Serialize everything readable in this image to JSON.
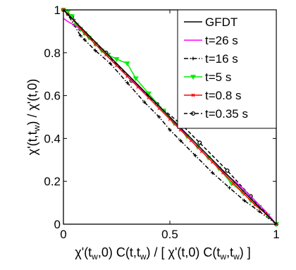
{
  "chart_data": {
    "type": "line",
    "title": "",
    "xlabel": {
      "parts": [
        {
          "t": "χ'(t"
        },
        {
          "t": "w",
          "sub": true
        },
        {
          "t": ",0) C(t,t"
        },
        {
          "t": "w",
          "sub": true
        },
        {
          "t": ") / [ χ'(t,0)  C(t"
        },
        {
          "t": "w",
          "sub": true
        },
        {
          "t": ",t"
        },
        {
          "t": "w",
          "sub": true
        },
        {
          "t": ") ]"
        }
      ]
    },
    "ylabel": {
      "parts": [
        {
          "t": "χ'(t,t"
        },
        {
          "t": "w",
          "sub": true
        },
        {
          "t": ") / χ'(t,0)"
        }
      ]
    },
    "xlim": [
      0,
      1
    ],
    "ylim": [
      0,
      1
    ],
    "xticks": [
      {
        "v": 0,
        "label": "0"
      },
      {
        "v": 0.5,
        "label": "0.5"
      },
      {
        "v": 1,
        "label": "1"
      }
    ],
    "yticks": [
      {
        "v": 0,
        "label": "0"
      },
      {
        "v": 0.2,
        "label": "0.2"
      },
      {
        "v": 0.4,
        "label": "0.4"
      },
      {
        "v": 0.6,
        "label": "0.6"
      },
      {
        "v": 0.8,
        "label": "0.8"
      },
      {
        "v": 1,
        "label": "1"
      }
    ],
    "grid": false,
    "legend_position": "top-right",
    "series": [
      {
        "name": "GFDT",
        "color": "#000000",
        "dash": "solid",
        "marker": "none",
        "points": [
          [
            0,
            1
          ],
          [
            1,
            0
          ]
        ]
      },
      {
        "name": "t=26 s",
        "color": "#ff00ff",
        "dash": "solid",
        "marker": "none",
        "points": [
          [
            0,
            0.96
          ],
          [
            0.03,
            0.94
          ],
          [
            0.05,
            0.93
          ],
          [
            0.08,
            0.91
          ],
          [
            0.12,
            0.87
          ],
          [
            0.2,
            0.79
          ],
          [
            0.3,
            0.69
          ],
          [
            0.4,
            0.6
          ],
          [
            0.5,
            0.5
          ],
          [
            0.6,
            0.39
          ],
          [
            0.7,
            0.29
          ],
          [
            0.78,
            0.22
          ],
          [
            0.84,
            0.17
          ],
          [
            0.9,
            0.11
          ],
          [
            0.95,
            0.06
          ],
          [
            1,
            0
          ]
        ]
      },
      {
        "name": "t=16 s",
        "color": "#000000",
        "dash": "dashdot",
        "marker": "plus",
        "points": [
          [
            0,
            1
          ],
          [
            0.02,
            0.98
          ],
          [
            0.05,
            0.93
          ],
          [
            0.08,
            0.88
          ],
          [
            0.1,
            0.86
          ],
          [
            0.15,
            0.81
          ],
          [
            0.22,
            0.75
          ],
          [
            0.3,
            0.66
          ],
          [
            0.38,
            0.57
          ],
          [
            0.45,
            0.5
          ],
          [
            0.5,
            0.44
          ],
          [
            0.55,
            0.39
          ],
          [
            0.62,
            0.32
          ],
          [
            0.7,
            0.24
          ],
          [
            0.78,
            0.17
          ],
          [
            0.85,
            0.11
          ],
          [
            0.92,
            0.06
          ],
          [
            1,
            0
          ]
        ]
      },
      {
        "name": "t=5 s",
        "color": "#00ee00",
        "dash": "solid",
        "marker": "triangle-down",
        "points": [
          [
            0,
            1
          ],
          [
            0.02,
            0.99
          ],
          [
            0.04,
            0.97
          ],
          [
            0.06,
            0.93
          ],
          [
            0.08,
            0.91
          ],
          [
            0.1,
            0.89
          ],
          [
            0.12,
            0.87
          ],
          [
            0.15,
            0.84
          ],
          [
            0.18,
            0.81
          ],
          [
            0.21,
            0.79
          ],
          [
            0.25,
            0.77
          ],
          [
            0.3,
            0.75
          ],
          [
            0.34,
            0.68
          ],
          [
            0.4,
            0.61
          ],
          [
            0.47,
            0.53
          ],
          [
            0.52,
            0.47
          ],
          [
            0.58,
            0.41
          ],
          [
            0.63,
            0.36
          ],
          [
            0.68,
            0.31
          ],
          [
            0.73,
            0.26
          ],
          [
            0.79,
            0.19
          ],
          [
            0.84,
            0.15
          ],
          [
            0.88,
            0.11
          ],
          [
            0.92,
            0.08
          ],
          [
            0.96,
            0.04
          ],
          [
            1,
            0
          ]
        ]
      },
      {
        "name": "t=0.8 s",
        "color": "#ff0000",
        "dash": "solid",
        "marker": "x",
        "points": [
          [
            0,
            1
          ],
          [
            0.02,
            0.98
          ],
          [
            0.05,
            0.95
          ],
          [
            0.1,
            0.89
          ],
          [
            0.15,
            0.84
          ],
          [
            0.2,
            0.79
          ],
          [
            0.25,
            0.74
          ],
          [
            0.3,
            0.69
          ],
          [
            0.35,
            0.64
          ],
          [
            0.4,
            0.59
          ],
          [
            0.45,
            0.54
          ],
          [
            0.5,
            0.49
          ],
          [
            0.55,
            0.44
          ],
          [
            0.6,
            0.39
          ],
          [
            0.65,
            0.34
          ],
          [
            0.7,
            0.29
          ],
          [
            0.75,
            0.24
          ],
          [
            0.8,
            0.19
          ],
          [
            0.85,
            0.14
          ],
          [
            0.9,
            0.09
          ],
          [
            0.95,
            0.05
          ],
          [
            1,
            0
          ]
        ]
      },
      {
        "name": "t=0.35 s",
        "color": "#000000",
        "dash": "dashed",
        "marker": "circle",
        "points": [
          [
            0,
            1
          ],
          [
            0.04,
            0.97
          ],
          [
            0.08,
            0.91
          ],
          [
            0.2,
            0.8
          ],
          [
            0.32,
            0.67
          ],
          [
            0.44,
            0.56
          ],
          [
            0.56,
            0.46
          ],
          [
            0.64,
            0.38
          ],
          [
            0.77,
            0.25
          ],
          [
            0.88,
            0.13
          ],
          [
            1,
            0
          ]
        ]
      }
    ]
  }
}
